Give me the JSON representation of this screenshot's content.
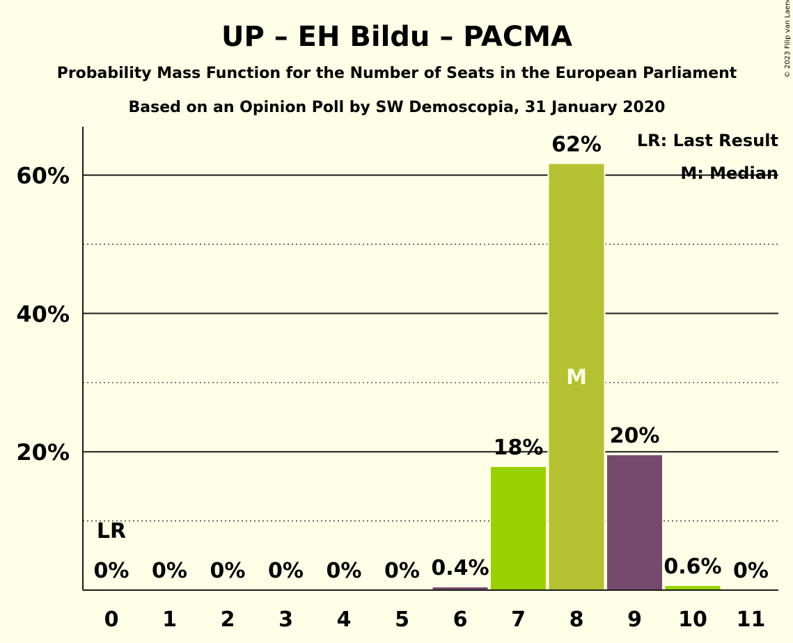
{
  "copyright": "© 2023 Filip van Laenen",
  "chart_data": {
    "type": "bar",
    "title": "UP – EH Bildu – PACMA",
    "subtitle": "Probability Mass Function for the Number of Seats in the European Parliament",
    "subtitle2": "Based on an Opinion Poll by SW Demoscopia, 31 January 2020",
    "xlabel": "",
    "ylabel": "",
    "ylim": [
      0,
      67
    ],
    "y_major_ticks": [
      20,
      40,
      60
    ],
    "y_minor_ticks": [
      10,
      30,
      50
    ],
    "y_tick_labels": [
      "20%",
      "40%",
      "60%"
    ],
    "categories": [
      "0",
      "1",
      "2",
      "3",
      "4",
      "5",
      "6",
      "7",
      "8",
      "9",
      "10",
      "11"
    ],
    "values": [
      0,
      0,
      0,
      0,
      0,
      0,
      0.4,
      17.8,
      61.6,
      19.5,
      0.6,
      0
    ],
    "value_labels": [
      "0%",
      "0%",
      "0%",
      "0%",
      "0%",
      "0%",
      "0.4%",
      "18%",
      "62%",
      "20%",
      "0.6%",
      "0%"
    ],
    "bar_colors": [
      "#764A6E",
      "#764A6E",
      "#764A6E",
      "#764A6E",
      "#764A6E",
      "#764A6E",
      "#764A6E",
      "#98D200",
      "#B6C131",
      "#764A6E",
      "#98D200",
      "#764A6E"
    ],
    "last_result_index": 0,
    "last_result_marker": "LR",
    "median_index": 8,
    "median_marker": "M",
    "legend": [
      "LR: Last Result",
      "M: Median"
    ],
    "legend_position": "top-right",
    "grid": true
  }
}
